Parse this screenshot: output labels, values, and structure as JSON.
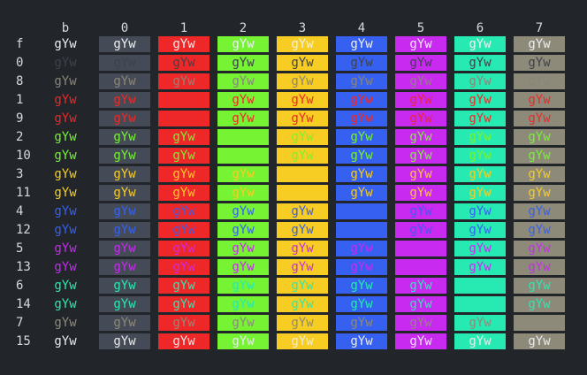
{
  "sample_text": "gYw",
  "column_headers": [
    "b",
    "0",
    "1",
    "2",
    "3",
    "4",
    "5",
    "6",
    "7"
  ],
  "row_labels": [
    "f",
    "0",
    "8",
    "1",
    "9",
    "2",
    "10",
    "3",
    "11",
    "4",
    "12",
    "5",
    "13",
    "6",
    "14",
    "7",
    "15"
  ],
  "foreground_colors": {
    "f": "#eceff1",
    "0": "#3d424c",
    "8": "#8a8579",
    "1": "#ee2828",
    "9": "#ee2828",
    "2": "#76f332",
    "10": "#76f332",
    "3": "#f7cd23",
    "11": "#f7cd23",
    "4": "#3660f0",
    "12": "#3660f0",
    "5": "#c82af0",
    "13": "#c82af0",
    "6": "#27eab2",
    "14": "#27eab2",
    "7": "#8d8a7a",
    "15": "#e8eaec"
  },
  "background_colors": {
    "b": "#22262a",
    "0": "#454b56",
    "1": "#ee2828",
    "2": "#76f332",
    "3": "#f7cd23",
    "4": "#3660f0",
    "5": "#c82af0",
    "6": "#27eab2",
    "7": "#8d8a7a"
  },
  "header_text_color": "#d8dadc"
}
